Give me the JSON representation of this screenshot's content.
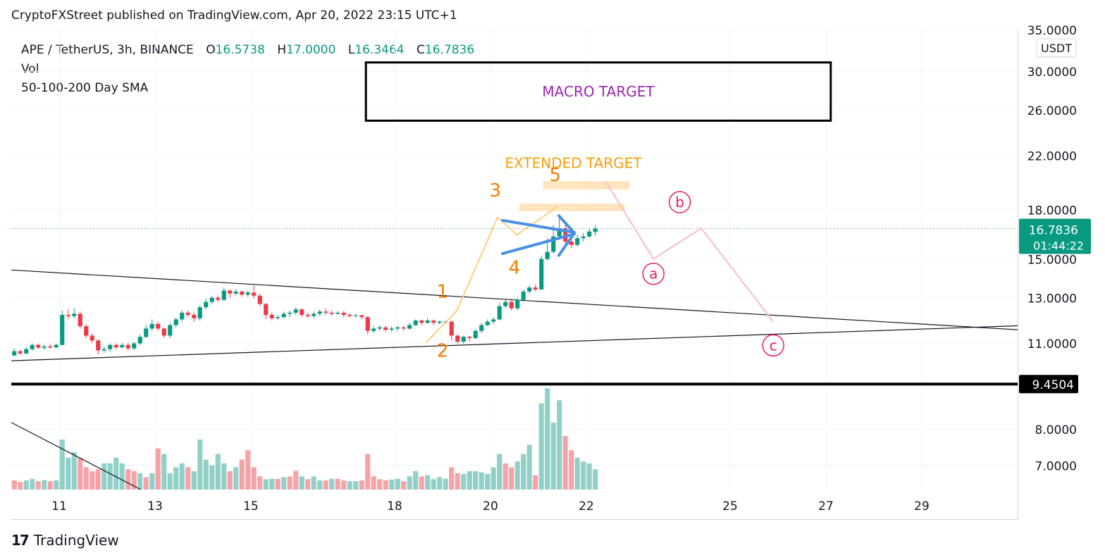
{
  "header": {
    "text": "CryptoFXStreet published on TradingView.com, Apr 20, 2022 23:15 UTC+1"
  },
  "legend": {
    "symbol": "APE / TetherUS, 3h, BINANCE",
    "o_label": "O",
    "o_value": "16.5738",
    "h_label": "H",
    "h_value": "17.0000",
    "l_label": "L",
    "l_value": "16.3464",
    "c_label": "C",
    "c_value": "16.7836",
    "vol": "Vol",
    "sma": "50-100-200 Day SMA"
  },
  "currency_button": "USDT",
  "price_tag": {
    "price": "16.7836",
    "countdown": "01:44:22"
  },
  "level_tag": "9.4504",
  "annotations": {
    "macro_target": "MACRO TARGET",
    "extended_target": "EXTENDED TARGET",
    "wave_labels": [
      "1",
      "2",
      "3",
      "4",
      "5"
    ],
    "corrective_labels": [
      "a",
      "b",
      "c"
    ]
  },
  "footer": {
    "brand": "TradingView"
  },
  "colors": {
    "up": "#089981",
    "down": "#f23645",
    "vol_up": "#91d0c7",
    "vol_down": "#f5a3a6",
    "orange": "#f57c00",
    "pink": "#e91e63",
    "blue": "#4a90e2",
    "purple": "#9c27b0"
  },
  "chart_data": {
    "type": "candlestick",
    "symbol": "APE / TetherUS",
    "interval": "3h",
    "y_axis": {
      "scale": "log",
      "ticks": [
        "35.0000",
        "30.0000",
        "26.0000",
        "22.0000",
        "18.0000",
        "15.0000",
        "13.0000",
        "11.0000",
        "8.0000",
        "7.0000"
      ],
      "min": 6.4,
      "max": 35
    },
    "x_axis": {
      "ticks": [
        "11",
        "13",
        "15",
        "18",
        "20",
        "22",
        "25",
        "27",
        "29"
      ],
      "start_day": 10.0,
      "end_day": 31.0
    },
    "last_price": 16.7836,
    "horizontal_level": 9.4504,
    "candles": [
      [
        10.5,
        10.67,
        10.48,
        10.78
      ],
      [
        10.67,
        10.58,
        10.52,
        10.72
      ],
      [
        10.58,
        10.75,
        10.55,
        10.84
      ],
      [
        10.75,
        10.92,
        10.68,
        10.98
      ],
      [
        10.92,
        10.81,
        10.76,
        10.97
      ],
      [
        10.81,
        10.86,
        10.72,
        10.92
      ],
      [
        10.86,
        10.82,
        10.77,
        10.95
      ],
      [
        10.82,
        10.92,
        10.78,
        10.98
      ],
      [
        10.92,
        12.2,
        10.9,
        12.4
      ],
      [
        12.2,
        12.15,
        12.0,
        12.45
      ],
      [
        12.15,
        12.25,
        12.05,
        12.5
      ],
      [
        12.25,
        11.7,
        11.6,
        12.35
      ],
      [
        11.7,
        11.3,
        11.2,
        11.8
      ],
      [
        11.3,
        11.1,
        11.0,
        11.4
      ],
      [
        11.1,
        10.7,
        10.55,
        11.15
      ],
      [
        10.7,
        10.75,
        10.6,
        10.85
      ],
      [
        10.75,
        10.92,
        10.65,
        10.98
      ],
      [
        10.92,
        10.82,
        10.75,
        10.98
      ],
      [
        10.82,
        10.92,
        10.78,
        11.0
      ],
      [
        10.92,
        10.78,
        10.7,
        11.0
      ],
      [
        10.78,
        10.98,
        10.72,
        11.05
      ],
      [
        10.98,
        11.25,
        10.9,
        11.35
      ],
      [
        11.25,
        11.6,
        11.2,
        11.75
      ],
      [
        11.6,
        11.8,
        11.5,
        12.0
      ],
      [
        11.8,
        11.6,
        11.5,
        11.9
      ],
      [
        11.6,
        11.3,
        11.2,
        11.65
      ],
      [
        11.3,
        11.75,
        11.2,
        11.85
      ],
      [
        11.75,
        12.0,
        11.65,
        12.1
      ],
      [
        12.0,
        12.3,
        11.9,
        12.4
      ],
      [
        12.3,
        12.2,
        12.1,
        12.4
      ],
      [
        12.2,
        12.05,
        11.9,
        12.3
      ],
      [
        12.05,
        12.55,
        11.95,
        12.65
      ],
      [
        12.55,
        12.8,
        12.45,
        12.95
      ],
      [
        12.8,
        13.0,
        12.7,
        13.1
      ],
      [
        13.0,
        12.9,
        12.8,
        13.1
      ],
      [
        12.9,
        13.35,
        12.85,
        13.5
      ],
      [
        13.35,
        13.2,
        13.0,
        13.4
      ],
      [
        13.2,
        13.3,
        13.1,
        13.4
      ],
      [
        13.3,
        13.15,
        13.05,
        13.35
      ],
      [
        13.15,
        13.25,
        13.05,
        13.35
      ],
      [
        13.25,
        13.1,
        12.95,
        13.6
      ],
      [
        13.1,
        12.7,
        12.6,
        13.2
      ],
      [
        12.7,
        12.2,
        12.0,
        12.75
      ],
      [
        12.2,
        12.05,
        11.95,
        12.3
      ],
      [
        12.05,
        12.1,
        11.98,
        12.2
      ],
      [
        12.1,
        12.25,
        12.05,
        12.35
      ],
      [
        12.25,
        12.3,
        12.1,
        12.4
      ],
      [
        12.3,
        12.45,
        12.2,
        12.55
      ],
      [
        12.45,
        12.2,
        12.1,
        12.5
      ],
      [
        12.2,
        12.15,
        12.05,
        12.3
      ],
      [
        12.15,
        12.25,
        12.05,
        12.35
      ],
      [
        12.25,
        12.35,
        12.15,
        12.45
      ],
      [
        12.35,
        12.3,
        12.2,
        12.5
      ],
      [
        12.3,
        12.25,
        12.15,
        12.4
      ],
      [
        12.25,
        12.3,
        12.2,
        12.38
      ],
      [
        12.3,
        12.2,
        12.1,
        12.38
      ],
      [
        12.2,
        12.15,
        12.08,
        12.28
      ],
      [
        12.15,
        12.18,
        12.08,
        12.25
      ],
      [
        12.18,
        12.1,
        12.0,
        12.22
      ],
      [
        12.1,
        11.5,
        11.35,
        12.15
      ],
      [
        11.5,
        11.6,
        11.4,
        11.7
      ],
      [
        11.6,
        11.65,
        11.5,
        11.75
      ],
      [
        11.65,
        11.55,
        11.45,
        11.72
      ],
      [
        11.55,
        11.6,
        11.45,
        11.7
      ],
      [
        11.6,
        11.65,
        11.5,
        11.72
      ],
      [
        11.65,
        11.6,
        11.5,
        11.72
      ],
      [
        11.6,
        11.75,
        11.55,
        11.85
      ],
      [
        11.75,
        11.95,
        11.7,
        12.0
      ],
      [
        11.95,
        11.85,
        11.75,
        12.0
      ],
      [
        11.85,
        11.95,
        11.8,
        12.05
      ],
      [
        11.95,
        11.85,
        11.75,
        12.0
      ],
      [
        11.85,
        11.9,
        11.78,
        11.95
      ],
      [
        11.9,
        11.9,
        11.8,
        11.95
      ],
      [
        11.9,
        11.3,
        11.1,
        11.95
      ],
      [
        11.3,
        11.05,
        10.98,
        11.35
      ],
      [
        11.05,
        11.25,
        10.98,
        11.3
      ],
      [
        11.25,
        11.2,
        11.05,
        11.3
      ],
      [
        11.2,
        11.5,
        11.15,
        11.6
      ],
      [
        11.5,
        11.75,
        11.4,
        11.85
      ],
      [
        11.75,
        11.9,
        11.7,
        12.0
      ],
      [
        11.9,
        12.0,
        11.8,
        12.1
      ],
      [
        12.0,
        12.6,
        11.95,
        12.75
      ],
      [
        12.6,
        12.8,
        12.5,
        12.9
      ],
      [
        12.8,
        12.5,
        12.4,
        12.9
      ],
      [
        12.5,
        12.9,
        12.4,
        13.0
      ],
      [
        12.9,
        13.3,
        12.8,
        13.4
      ],
      [
        13.3,
        13.5,
        13.2,
        13.6
      ],
      [
        13.5,
        13.4,
        13.3,
        13.65
      ],
      [
        13.4,
        15.0,
        13.4,
        15.2
      ],
      [
        15.0,
        15.4,
        14.9,
        16.2
      ],
      [
        15.4,
        16.3,
        15.3,
        17.0
      ],
      [
        16.3,
        16.8,
        16.1,
        17.5
      ],
      [
        16.8,
        16.0,
        15.8,
        17.0
      ],
      [
        16.0,
        15.8,
        15.6,
        16.4
      ],
      [
        15.8,
        16.2,
        15.7,
        16.4
      ],
      [
        16.2,
        16.3,
        16.0,
        16.5
      ],
      [
        16.3,
        16.6,
        16.2,
        16.8
      ],
      [
        16.5738,
        16.7836,
        16.3464,
        17.0
      ]
    ],
    "volumes": [
      [
        6.62,
        0
      ],
      [
        6.58,
        0
      ],
      [
        6.62,
        1
      ],
      [
        6.66,
        1
      ],
      [
        6.6,
        0
      ],
      [
        6.63,
        1
      ],
      [
        6.6,
        0
      ],
      [
        6.62,
        1
      ],
      [
        7.7,
        1
      ],
      [
        7.2,
        1
      ],
      [
        7.35,
        1
      ],
      [
        7.2,
        0
      ],
      [
        6.95,
        0
      ],
      [
        6.85,
        0
      ],
      [
        6.9,
        0
      ],
      [
        7.05,
        1
      ],
      [
        7.05,
        1
      ],
      [
        7.2,
        1
      ],
      [
        7.05,
        1
      ],
      [
        6.9,
        0
      ],
      [
        6.85,
        0
      ],
      [
        6.8,
        1
      ],
      [
        6.7,
        0
      ],
      [
        6.8,
        1
      ],
      [
        7.45,
        0
      ],
      [
        7.3,
        1
      ],
      [
        6.8,
        1
      ],
      [
        6.95,
        1
      ],
      [
        7.05,
        1
      ],
      [
        6.95,
        0
      ],
      [
        6.85,
        1
      ],
      [
        7.7,
        1
      ],
      [
        7.15,
        1
      ],
      [
        7.0,
        1
      ],
      [
        7.3,
        1
      ],
      [
        7.05,
        1
      ],
      [
        6.85,
        0
      ],
      [
        6.95,
        1
      ],
      [
        7.15,
        0
      ],
      [
        7.4,
        0
      ],
      [
        6.95,
        0
      ],
      [
        6.72,
        0
      ],
      [
        6.65,
        1
      ],
      [
        6.66,
        1
      ],
      [
        6.66,
        0
      ],
      [
        6.7,
        1
      ],
      [
        6.72,
        0
      ],
      [
        6.86,
        0
      ],
      [
        6.72,
        1
      ],
      [
        6.65,
        0
      ],
      [
        6.72,
        1
      ],
      [
        6.62,
        1
      ],
      [
        6.62,
        0
      ],
      [
        6.66,
        1
      ],
      [
        6.66,
        0
      ],
      [
        6.62,
        0
      ],
      [
        6.6,
        1
      ],
      [
        6.6,
        1
      ],
      [
        6.62,
        0
      ],
      [
        7.3,
        0
      ],
      [
        6.72,
        0
      ],
      [
        6.65,
        0
      ],
      [
        6.62,
        0
      ],
      [
        6.64,
        1
      ],
      [
        6.66,
        1
      ],
      [
        6.6,
        0
      ],
      [
        6.72,
        1
      ],
      [
        6.85,
        1
      ],
      [
        6.72,
        0
      ],
      [
        6.75,
        1
      ],
      [
        6.65,
        1
      ],
      [
        6.7,
        1
      ],
      [
        6.66,
        1
      ],
      [
        6.95,
        0
      ],
      [
        6.8,
        0
      ],
      [
        6.78,
        1
      ],
      [
        6.85,
        1
      ],
      [
        6.85,
        1
      ],
      [
        6.82,
        1
      ],
      [
        6.78,
        1
      ],
      [
        6.95,
        1
      ],
      [
        7.3,
        1
      ],
      [
        7.05,
        0
      ],
      [
        6.95,
        0
      ],
      [
        7.1,
        1
      ],
      [
        7.3,
        1
      ],
      [
        7.55,
        1
      ],
      [
        6.75,
        0
      ],
      [
        8.8,
        1
      ],
      [
        9.3,
        1
      ],
      [
        8.2,
        1
      ],
      [
        8.9,
        1
      ],
      [
        7.8,
        0
      ],
      [
        7.4,
        0
      ],
      [
        7.2,
        1
      ],
      [
        7.1,
        1
      ],
      [
        7.05,
        1
      ],
      [
        6.9,
        1
      ]
    ]
  }
}
